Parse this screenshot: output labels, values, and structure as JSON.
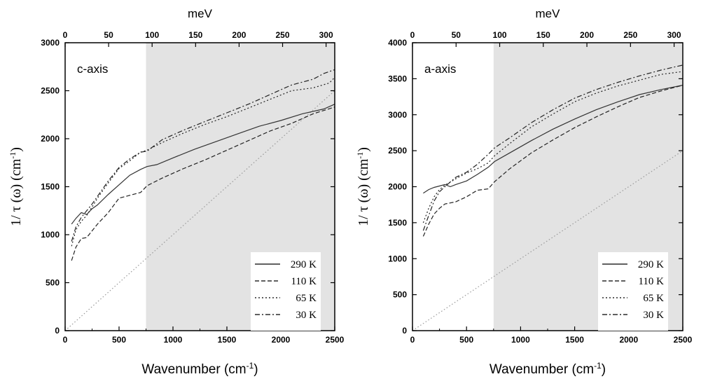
{
  "chart_data": [
    {
      "type": "line",
      "annotation": "c-axis",
      "xlabel_main": "Wavenumber (cm",
      "xlabel_sup": "-1",
      "xlabel_tail": ")",
      "ylabel_main": "1/ τ (ω) (cm",
      "ylabel_sup": "-1",
      "ylabel_tail": ")",
      "top_title": "meV",
      "xlim": [
        0,
        2500
      ],
      "ylim": [
        0,
        3000
      ],
      "x_ticks": [
        0,
        500,
        1000,
        1500,
        2000,
        2500
      ],
      "x_tick_labels": [
        "0",
        "500",
        "1000",
        "1500",
        "2000",
        "2500"
      ],
      "y_ticks": [
        0,
        500,
        1000,
        1500,
        2000,
        2500,
        3000
      ],
      "y_tick_labels": [
        "0",
        "500",
        "1000",
        "1500",
        "2000",
        "2500",
        "3000"
      ],
      "top_ticks_mev": [
        0,
        50,
        100,
        150,
        200,
        250,
        300
      ],
      "top_tick_labels": [
        "0",
        "50",
        "100",
        "150",
        "200",
        "250",
        "300"
      ],
      "shade_from_x": 750,
      "reference_line": {
        "x": [
          0,
          2500
        ],
        "y": [
          0,
          2500
        ]
      },
      "legend": [
        "290 K",
        "110 K",
        "65 K",
        "30 K"
      ],
      "series": [
        {
          "name": "290 K",
          "x": [
            60,
            100,
            150,
            200,
            250,
            300,
            400,
            500,
            600,
            700,
            760,
            850,
            1000,
            1200,
            1400,
            1600,
            1800,
            2000,
            2200,
            2400,
            2500
          ],
          "y": [
            1110,
            1170,
            1230,
            1210,
            1270,
            1310,
            1420,
            1520,
            1620,
            1680,
            1710,
            1730,
            1800,
            1890,
            1970,
            2050,
            2130,
            2190,
            2260,
            2310,
            2360
          ]
        },
        {
          "name": "110 K",
          "x": [
            60,
            100,
            150,
            200,
            300,
            400,
            500,
            600,
            700,
            760,
            900,
            1100,
            1300,
            1500,
            1700,
            1900,
            2100,
            2300,
            2500
          ],
          "y": [
            730,
            870,
            960,
            970,
            1110,
            1230,
            1380,
            1410,
            1440,
            1510,
            1590,
            1690,
            1780,
            1880,
            1980,
            2080,
            2160,
            2260,
            2330
          ]
        },
        {
          "name": "65 K",
          "x": [
            60,
            100,
            150,
            200,
            250,
            300,
            400,
            500,
            600,
            700,
            760,
            900,
            1100,
            1300,
            1500,
            1700,
            1900,
            2100,
            2300,
            2450,
            2500
          ],
          "y": [
            880,
            1050,
            1140,
            1200,
            1290,
            1380,
            1540,
            1690,
            1770,
            1860,
            1880,
            1960,
            2060,
            2150,
            2230,
            2320,
            2410,
            2500,
            2530,
            2580,
            2640
          ]
        },
        {
          "name": "30 K",
          "x": [
            60,
            100,
            150,
            200,
            250,
            300,
            400,
            500,
            600,
            700,
            760,
            900,
            1100,
            1300,
            1500,
            1700,
            1900,
            2100,
            2300,
            2400,
            2500
          ],
          "y": [
            930,
            1080,
            1180,
            1250,
            1320,
            1400,
            1560,
            1700,
            1790,
            1860,
            1870,
            1990,
            2090,
            2180,
            2270,
            2360,
            2460,
            2560,
            2620,
            2680,
            2720
          ]
        }
      ]
    },
    {
      "type": "line",
      "annotation": "a-axis",
      "xlabel_main": "Wavenumber (cm",
      "xlabel_sup": "-1",
      "xlabel_tail": ")",
      "ylabel_main": "1/ τ (ω) (cm",
      "ylabel_sup": "-1",
      "ylabel_tail": ")",
      "top_title": "meV",
      "xlim": [
        0,
        2500
      ],
      "ylim": [
        0,
        4000
      ],
      "x_ticks": [
        0,
        500,
        1000,
        1500,
        2000,
        2500
      ],
      "x_tick_labels": [
        "0",
        "500",
        "1000",
        "1500",
        "2000",
        "2500"
      ],
      "y_ticks": [
        0,
        500,
        1000,
        1500,
        2000,
        2500,
        3000,
        3500,
        4000
      ],
      "y_tick_labels": [
        "0",
        "500",
        "1000",
        "1500",
        "2000",
        "2500",
        "3000",
        "3500",
        "4000"
      ],
      "top_ticks_mev": [
        0,
        50,
        100,
        150,
        200,
        250,
        300
      ],
      "top_tick_labels": [
        "0",
        "50",
        "100",
        "150",
        "200",
        "250",
        "300"
      ],
      "shade_from_x": 750,
      "reference_line": {
        "x": [
          0,
          2500
        ],
        "y": [
          0,
          2500
        ]
      },
      "legend": [
        "290 K",
        "110 K",
        "65 K",
        "30 K"
      ],
      "series": [
        {
          "name": "290 K",
          "x": [
            100,
            150,
            200,
            250,
            300,
            350,
            400,
            500,
            600,
            700,
            760,
            900,
            1100,
            1300,
            1500,
            1700,
            1900,
            2100,
            2300,
            2500
          ],
          "y": [
            1910,
            1960,
            1990,
            2010,
            2030,
            2000,
            2030,
            2080,
            2170,
            2270,
            2350,
            2470,
            2640,
            2800,
            2940,
            3070,
            3180,
            3280,
            3350,
            3410
          ]
        },
        {
          "name": "110 K",
          "x": [
            100,
            150,
            200,
            250,
            300,
            400,
            500,
            600,
            700,
            760,
            900,
            1100,
            1300,
            1500,
            1700,
            1900,
            2100,
            2300,
            2500
          ],
          "y": [
            1310,
            1480,
            1620,
            1700,
            1760,
            1790,
            1860,
            1950,
            1970,
            2070,
            2250,
            2470,
            2650,
            2820,
            2970,
            3110,
            3240,
            3330,
            3410
          ]
        },
        {
          "name": "65 K",
          "x": [
            100,
            150,
            200,
            250,
            300,
            400,
            500,
            600,
            700,
            760,
            900,
            1100,
            1300,
            1500,
            1700,
            1900,
            2100,
            2300,
            2500
          ],
          "y": [
            1500,
            1700,
            1860,
            1960,
            2020,
            2110,
            2190,
            2250,
            2330,
            2430,
            2600,
            2830,
            3010,
            3180,
            3300,
            3400,
            3480,
            3560,
            3600
          ]
        },
        {
          "name": "30 K",
          "x": [
            100,
            150,
            200,
            250,
            300,
            400,
            500,
            600,
            700,
            760,
            900,
            1100,
            1300,
            1500,
            1700,
            1900,
            2100,
            2300,
            2500
          ],
          "y": [
            1390,
            1600,
            1800,
            1930,
            2000,
            2130,
            2200,
            2310,
            2450,
            2540,
            2680,
            2890,
            3070,
            3230,
            3350,
            3450,
            3540,
            3620,
            3690
          ]
        }
      ]
    }
  ]
}
